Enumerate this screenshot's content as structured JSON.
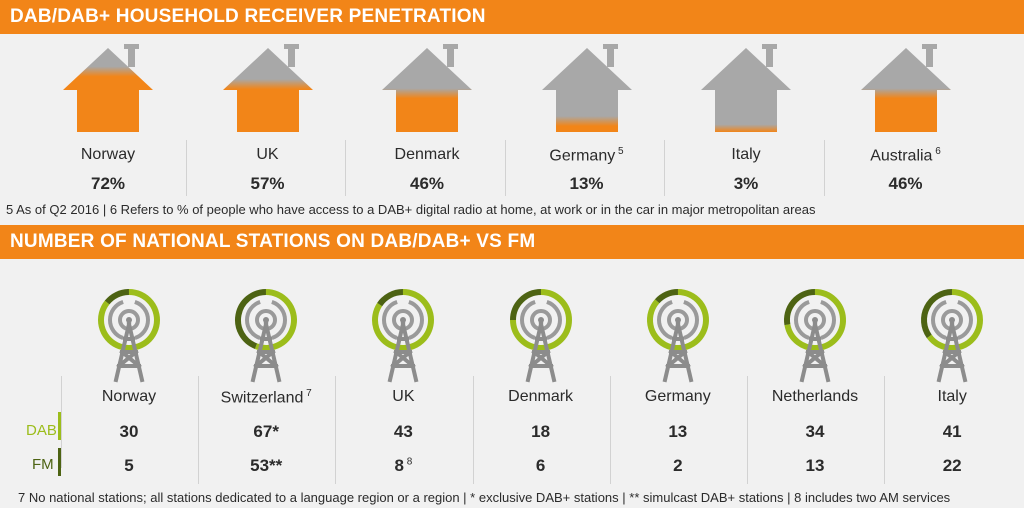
{
  "section1": {
    "title": "DAB/DAB+ HOUSEHOLD RECEIVER PENETRATION"
  },
  "section2": {
    "title": "NUMBER OF NATIONAL STATIONS ON DAB/DAB+ VS FM"
  },
  "notes": {
    "penetration": "5 As of Q2 2016 | 6 Refers to % of people who have access to a DAB+ digital radio at home, at work or in the car in major metropolitan areas",
    "stations": "7 No national stations; all stations dedicated to a language region or a region | * exclusive DAB+ stations | ** simulcast DAB+ stations | 8 includes two AM services"
  },
  "labels": {
    "dab": "DAB",
    "fm": "FM"
  },
  "colors": {
    "orange": "#f28518",
    "gray": "#a8a8a8",
    "dab_green": "#9cbd1b",
    "fm_green": "#4d6313",
    "tower": "#8c8c8c"
  },
  "chart_data": [
    {
      "type": "bar",
      "title": "DAB/DAB+ HOUSEHOLD RECEIVER PENETRATION",
      "categories": [
        "Norway",
        "UK",
        "Denmark",
        "Germany",
        "Italy",
        "Australia"
      ],
      "footnotes": [
        "",
        "",
        "",
        "5",
        "",
        "6"
      ],
      "values": [
        72,
        57,
        46,
        13,
        3,
        46
      ],
      "value_labels": [
        "72%",
        "57%",
        "46%",
        "13%",
        "3%",
        "46%"
      ],
      "unit": "%"
    },
    {
      "type": "pie",
      "title": "NUMBER OF NATIONAL STATIONS ON DAB/DAB+ VS FM",
      "categories": [
        "Norway",
        "Switzerland",
        "UK",
        "Denmark",
        "Germany",
        "Netherlands",
        "Italy"
      ],
      "footnotes": [
        "",
        "7",
        "",
        "",
        "",
        "",
        ""
      ],
      "series": [
        {
          "name": "DAB",
          "values": [
            30,
            67,
            43,
            18,
            13,
            34,
            41
          ],
          "value_labels": [
            "30",
            "67*",
            "43",
            "18",
            "13",
            "34",
            "41"
          ]
        },
        {
          "name": "FM",
          "values": [
            5,
            53,
            8,
            6,
            2,
            13,
            22
          ],
          "value_labels": [
            "5",
            "53**",
            "8",
            "6",
            "2",
            "13",
            "22"
          ],
          "label_notes": [
            "",
            "",
            "8",
            "",
            "",
            "",
            ""
          ]
        }
      ]
    }
  ]
}
